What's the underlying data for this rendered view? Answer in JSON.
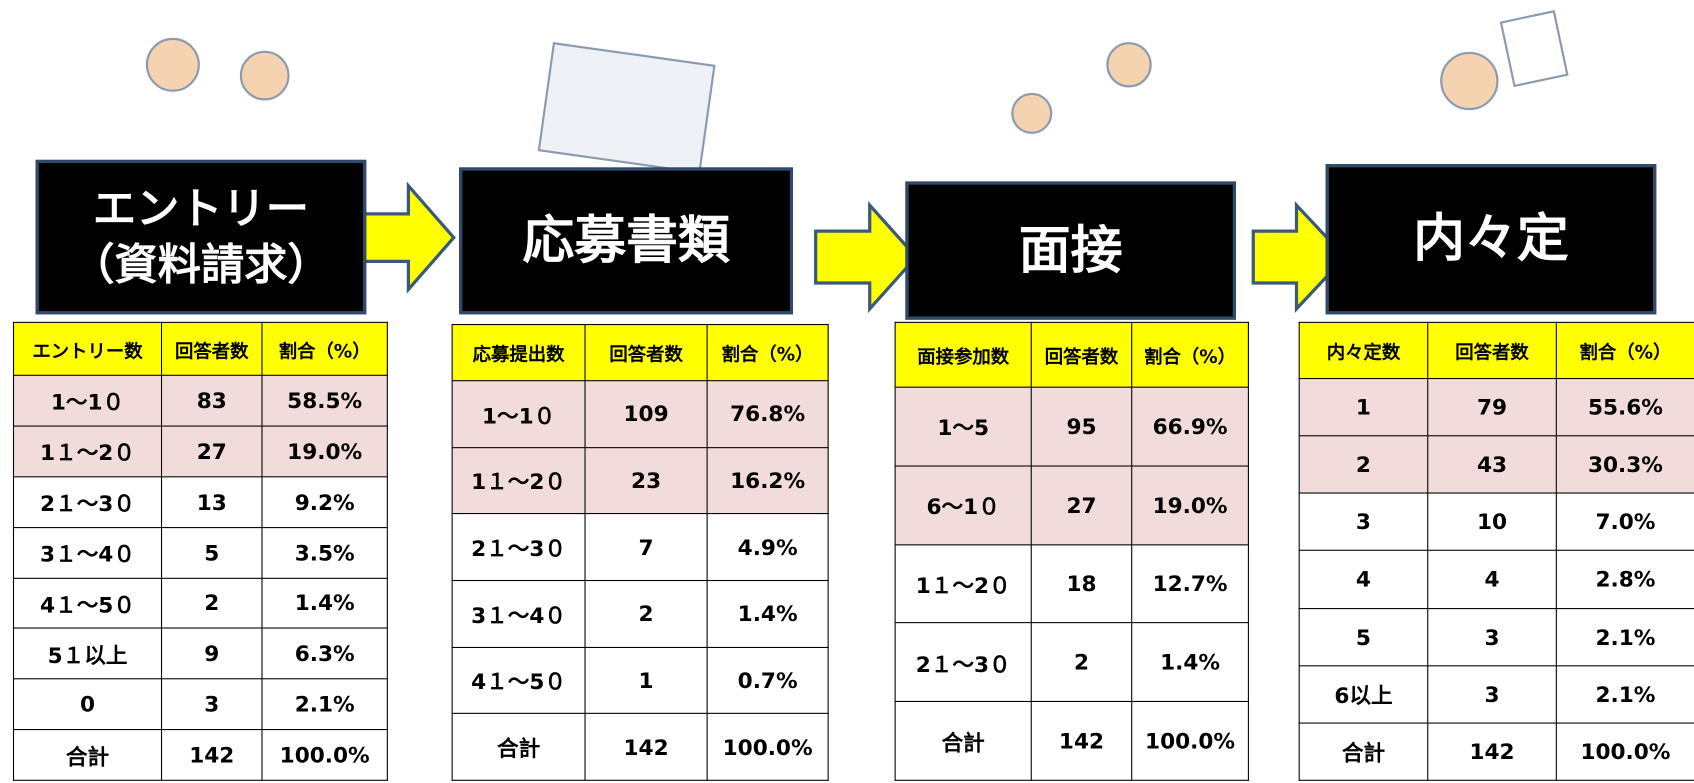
{
  "stages": [
    {
      "title": [
        "エントリー",
        "（資料請求）"
      ],
      "table": {
        "header": [
          "エントリー数",
          "回答者数",
          "割合（%）"
        ],
        "rows": [
          [
            "1～1０",
            "83",
            "58.5%"
          ],
          [
            "1１～2０",
            "27",
            "19.0%"
          ],
          [
            "2１～3０",
            "13",
            "9.2%"
          ],
          [
            "3１～4０",
            "5",
            "3.5%"
          ],
          [
            "4１～5０",
            "2",
            "1.4%"
          ],
          [
            "5１以上",
            "9",
            "6.3%"
          ],
          [
            "0",
            "3",
            "2.1%"
          ],
          [
            "合計",
            "142",
            "100.0%"
          ]
        ]
      }
    },
    {
      "title": [
        "応募書類"
      ],
      "table": {
        "header": [
          "応募提出数",
          "回答者数",
          "割合（%）"
        ],
        "rows": [
          [
            "1～1０",
            "109",
            "76.8%"
          ],
          [
            "1１～2０",
            "23",
            "16.2%"
          ],
          [
            "2１～3０",
            "7",
            "4.9%"
          ],
          [
            "3１～4０",
            "2",
            "1.4%"
          ],
          [
            "4１～5０",
            "1",
            "0.7%"
          ],
          [
            "合計",
            "142",
            "100.0%"
          ]
        ]
      }
    },
    {
      "title": [
        "面接"
      ],
      "table": {
        "header": [
          "面接参加数",
          "回答者数",
          "割合（%）"
        ],
        "rows": [
          [
            "1～5",
            "95",
            "66.9%"
          ],
          [
            "6～1０",
            "27",
            "19.0%"
          ],
          [
            "1１～2０",
            "18",
            "12.7%"
          ],
          [
            "2１～3０",
            "2",
            "1.4%"
          ],
          [
            "合計",
            "142",
            "100.0%"
          ]
        ]
      }
    },
    {
      "title": [
        "内々定"
      ],
      "table": {
        "header": [
          "内々定数",
          "回答者数",
          "割合（%）"
        ],
        "rows": [
          [
            "1",
            "79",
            "55.6%"
          ],
          [
            "2",
            "43",
            "30.3%"
          ],
          [
            "3",
            "10",
            "7.0%"
          ],
          [
            "4",
            "4",
            "2.8%"
          ],
          [
            "5",
            "3",
            "2.1%"
          ],
          [
            "6以上",
            "3",
            "2.1%"
          ],
          [
            "合計",
            "142",
            "100.0%"
          ]
        ]
      }
    }
  ]
}
